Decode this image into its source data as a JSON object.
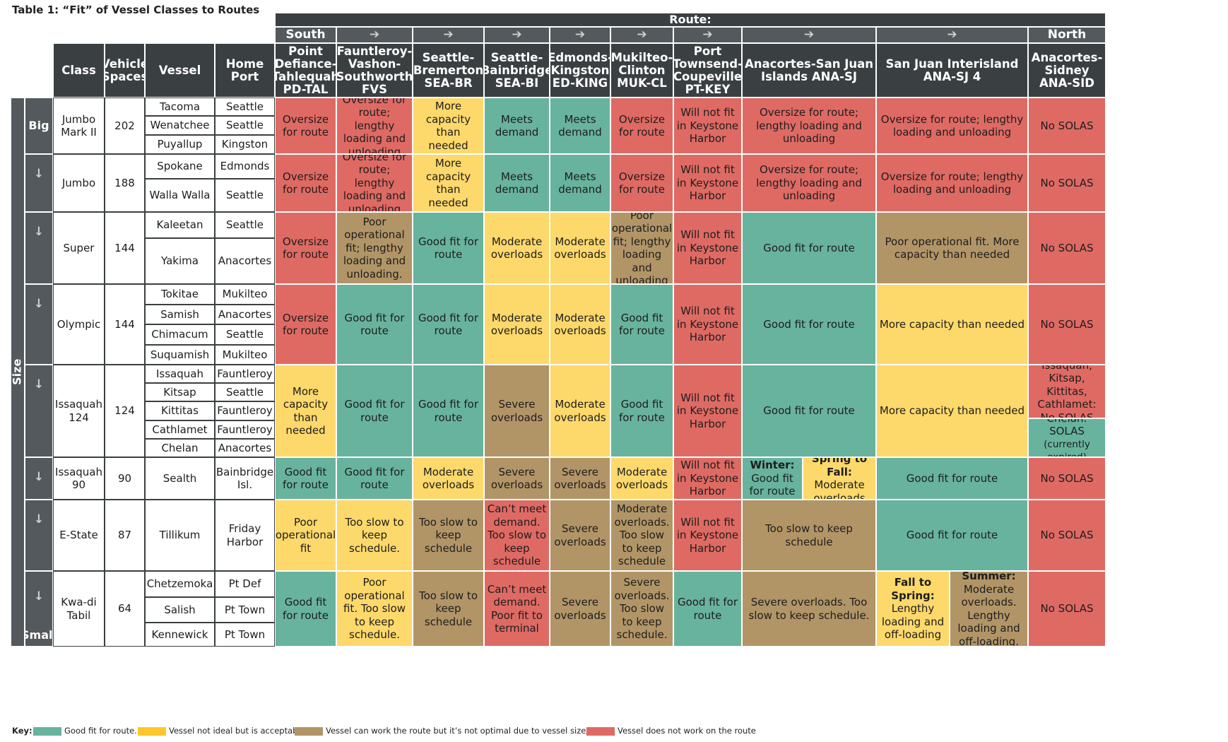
{
  "title": "Table 1: “Fit” of Vessel Classes to Routes",
  "headers": {
    "route": "Route:",
    "south": "South",
    "north": "North",
    "arrow": "➔",
    "class": "Class",
    "vehicle_spaces": "Vehicle Spaces",
    "vessel": "Vessel",
    "home_port": "Home Port",
    "size": "Size",
    "big": "Big",
    "small": "Small",
    "down_arrow": "↓"
  },
  "routes": [
    "Point Defiance-Tahlequah PD-TAL",
    "Fauntleroy-Vashon-Southworth FVS",
    "Seattle-Bremerton SEA-BR",
    "Seattle-Bainbridge SEA-BI",
    "Edmonds-Kingston ED-KING",
    "Mukilteo-Clinton MUK-CL",
    "Port Townsend-Coupeville PT-KEY",
    "Anacortes-San Juan Islands ANA-SJ",
    "San Juan Interisland ANA-SJ 4",
    "Anacortes-Sidney ANA-SID"
  ],
  "classes": [
    {
      "name": "Jumbo Mark II",
      "spaces": "202",
      "vessels": [
        "Tacoma",
        "Wenatchee",
        "Puyallup"
      ],
      "ports": [
        "Seattle",
        "Seattle",
        "Kingston"
      ]
    },
    {
      "name": "Jumbo",
      "spaces": "188",
      "vessels": [
        "Spokane",
        "Walla Walla"
      ],
      "ports": [
        "Edmonds",
        "Seattle"
      ]
    },
    {
      "name": "Super",
      "spaces": "144",
      "vessels": [
        "Kaleetan",
        "Yakima"
      ],
      "ports": [
        "Seattle",
        "Anacortes"
      ]
    },
    {
      "name": "Olympic",
      "spaces": "144",
      "vessels": [
        "Tokitae",
        "Samish",
        "Chimacum",
        "Suquamish"
      ],
      "ports": [
        "Mukilteo",
        "Anacortes",
        "Seattle",
        "Mukilteo"
      ]
    },
    {
      "name": "Issaquah 124",
      "spaces": "124",
      "vessels": [
        "Issaquah",
        "Kitsap",
        "Kittitas",
        "Cathlamet",
        "Chelan"
      ],
      "ports": [
        "Fauntleroy",
        "Seattle",
        "Fauntleroy",
        "Fauntleroy",
        "Anacortes"
      ]
    },
    {
      "name": "Issaquah 90",
      "spaces": "90",
      "vessels": [
        "Sealth"
      ],
      "ports": [
        "Bainbridge Isl."
      ]
    },
    {
      "name": "E-State",
      "spaces": "87",
      "vessels": [
        "Tillikum"
      ],
      "ports": [
        "Friday Harbor"
      ]
    },
    {
      "name": "Kwa-di Tabil",
      "spaces": "64",
      "vessels": [
        "Chetzemoka",
        "Salish",
        "Kennewick"
      ],
      "ports": [
        "Pt Def",
        "Pt Town",
        "Pt Town"
      ]
    }
  ],
  "fits": [
    [
      {
        "t": "Oversize for route",
        "c": "r"
      },
      {
        "t": "Oversize for route; lengthy loading and unloading",
        "c": "r"
      },
      {
        "t": "More capacity than needed",
        "c": "y"
      },
      {
        "t": "Meets demand",
        "c": "g"
      },
      {
        "t": "Meets demand",
        "c": "g"
      },
      {
        "t": "Oversize for route",
        "c": "r"
      },
      {
        "t": "Will not fit in Keystone Harbor",
        "c": "r"
      },
      {
        "t": "Oversize for route; lengthy loading and unloading",
        "c": "r"
      },
      {
        "t": "Oversize for route; lengthy loading and unloading",
        "c": "r"
      },
      {
        "t": "No SOLAS",
        "c": "r"
      }
    ],
    [
      {
        "t": "Oversize for route",
        "c": "r"
      },
      {
        "t": "Oversize for route; lengthy loading and unloading",
        "c": "r"
      },
      {
        "t": "More capacity than needed",
        "c": "y"
      },
      {
        "t": "Meets demand",
        "c": "g"
      },
      {
        "t": "Meets demand",
        "c": "g"
      },
      {
        "t": "Oversize for route",
        "c": "r"
      },
      {
        "t": "Will not fit in Keystone Harbor",
        "c": "r"
      },
      {
        "t": "Oversize for route; lengthy loading and unloading",
        "c": "r"
      },
      {
        "t": "Oversize for route; lengthy loading and unloading",
        "c": "r"
      },
      {
        "t": "No SOLAS",
        "c": "r"
      }
    ],
    [
      {
        "t": "Oversize for route",
        "c": "r"
      },
      {
        "t": "Poor operational fit; lengthy loading and unloading.",
        "c": "b"
      },
      {
        "t": "Good fit for route",
        "c": "g"
      },
      {
        "t": "Moderate overloads",
        "c": "y"
      },
      {
        "t": "Moderate overloads",
        "c": "y"
      },
      {
        "t": "Poor operational fit; lengthy loading and unloading",
        "c": "b"
      },
      {
        "t": "Will not fit in Keystone Harbor",
        "c": "r"
      },
      {
        "t": "Good fit for route",
        "c": "g"
      },
      {
        "t": "Poor operational fit. More capacity than needed",
        "c": "b"
      },
      {
        "t": "No SOLAS",
        "c": "r"
      }
    ],
    [
      {
        "t": "Oversize for route",
        "c": "r"
      },
      {
        "t": "Good fit for route",
        "c": "g"
      },
      {
        "t": "Good fit for route",
        "c": "g"
      },
      {
        "t": "Moderate overloads",
        "c": "y"
      },
      {
        "t": "Moderate overloads",
        "c": "y"
      },
      {
        "t": "Good fit for route",
        "c": "g"
      },
      {
        "t": "Will not fit in Keystone Harbor",
        "c": "r"
      },
      {
        "t": "Good fit for route",
        "c": "g"
      },
      {
        "t": "More capacity than needed",
        "c": "y"
      },
      {
        "t": "No SOLAS",
        "c": "r"
      }
    ],
    [
      {
        "t": "More capacity than needed",
        "c": "y"
      },
      {
        "t": "Good fit for route",
        "c": "g"
      },
      {
        "t": "Good fit for route",
        "c": "g"
      },
      {
        "t": "Severe overloads",
        "c": "b"
      },
      {
        "t": "Moderate overloads",
        "c": "y"
      },
      {
        "t": "Good fit for route",
        "c": "g"
      },
      {
        "t": "Will not fit in Keystone Harbor",
        "c": "r"
      },
      {
        "t": "Good fit for route",
        "c": "g"
      },
      {
        "t": "More capacity than needed",
        "c": "y"
      },
      {
        "split": "v",
        "parts": [
          {
            "t": "Issaquah, Kitsap, Kittitas, Cathlamet: No SOLAS",
            "c": "r"
          },
          {
            "t": "Chelan: SOLAS",
            "sub": "(currently expired)",
            "c": "g"
          }
        ]
      }
    ],
    [
      {
        "t": "Good fit for route",
        "c": "g"
      },
      {
        "t": "Good fit for route",
        "c": "g"
      },
      {
        "t": "Moderate overloads",
        "c": "y"
      },
      {
        "t": "Severe overloads",
        "c": "b"
      },
      {
        "t": "Severe overloads",
        "c": "b"
      },
      {
        "t": "Moderate overloads",
        "c": "y"
      },
      {
        "t": "Will not fit in Keystone Harbor",
        "c": "r"
      },
      {
        "split": "h",
        "parts": [
          {
            "h": "Winter:",
            "t": "Good fit for route",
            "c": "g"
          },
          {
            "h": "Spring to Fall:",
            "t": "Moderate overloads",
            "c": "y"
          }
        ]
      },
      {
        "t": "Good fit for route",
        "c": "g"
      },
      {
        "t": "No SOLAS",
        "c": "r"
      }
    ],
    [
      {
        "t": "Poor operational fit",
        "c": "y"
      },
      {
        "t": "Too slow to keep schedule.",
        "c": "y"
      },
      {
        "t": "Too slow to keep schedule",
        "c": "b"
      },
      {
        "t": "Can’t meet demand. Too slow to keep schedule",
        "c": "r"
      },
      {
        "t": "Severe overloads",
        "c": "b"
      },
      {
        "t": "Moderate overloads. Too slow to keep schedule",
        "c": "b"
      },
      {
        "t": "Will not fit in Keystone Harbor",
        "c": "r"
      },
      {
        "t": "Too slow to keep schedule",
        "c": "b"
      },
      {
        "t": "Good fit for route",
        "c": "g"
      },
      {
        "t": "No SOLAS",
        "c": "r"
      }
    ],
    [
      {
        "t": "Good fit for route",
        "c": "g"
      },
      {
        "t": "Poor operational fit. Too slow to keep schedule.",
        "c": "y"
      },
      {
        "t": "Too slow to keep schedule",
        "c": "b"
      },
      {
        "t": "Can’t meet demand. Poor fit to terminal",
        "c": "r"
      },
      {
        "t": "Severe overloads",
        "c": "b"
      },
      {
        "t": "Severe overloads. Too slow to keep schedule.",
        "c": "b"
      },
      {
        "t": "Good fit for route",
        "c": "g"
      },
      {
        "t": "Severe overloads. Too slow to keep schedule.",
        "c": "b"
      },
      {
        "split": "h",
        "parts": [
          {
            "h": "Fall to Spring:",
            "t": "Lengthy loading and off-loading",
            "c": "y"
          },
          {
            "h": "Summer:",
            "t": "Moderate overloads. Lengthy loading and off-loading.",
            "c": "b"
          }
        ]
      },
      {
        "t": "No SOLAS",
        "c": "r"
      }
    ]
  ],
  "key": {
    "label": "Key:",
    "items": [
      {
        "t": "Good fit for route.",
        "color": "#68b39d"
      },
      {
        "t": "Vessel not ideal but is acceptable.",
        "color": "#fdc62a"
      },
      {
        "t": "Vessel can work the route but it’s not optimal due to vessel size/speed.",
        "color": "#b29567"
      },
      {
        "t": "Vessel does not work on the route",
        "color": "#df6a64"
      }
    ]
  },
  "colors": {
    "green": "#68b39d",
    "yellow": "#fdd86b",
    "brown": "#b29567",
    "red": "#df6a64",
    "header": "#3a3f42",
    "subheader": "#53595d"
  }
}
